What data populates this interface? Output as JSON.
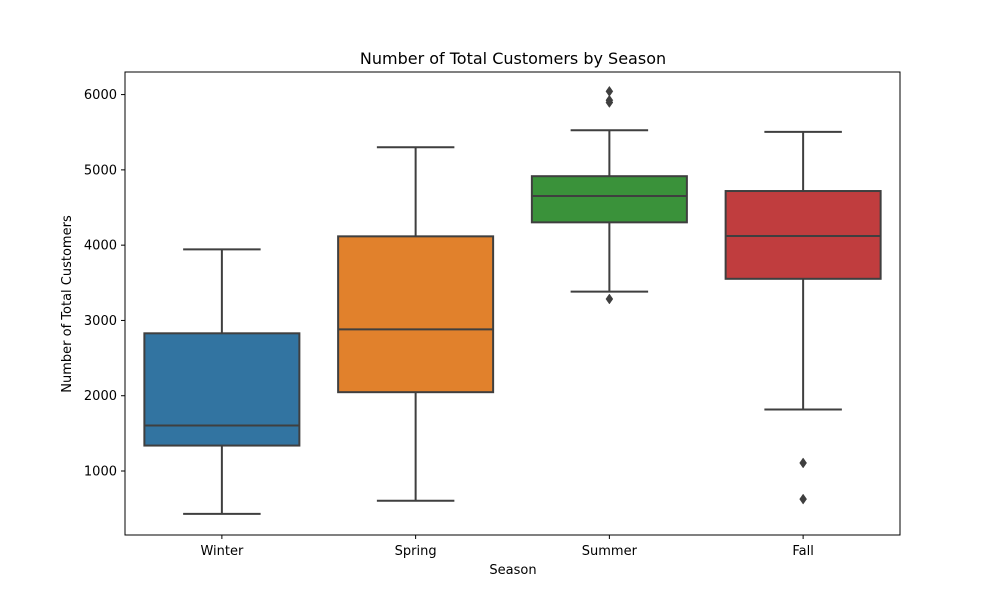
{
  "chart_data": {
    "type": "box",
    "title": "Number of Total Customers by Season",
    "xlabel": "Season",
    "ylabel": "Number of Total Customers",
    "ylim": [
      150,
      6300
    ],
    "yticks": [
      1000,
      2000,
      3000,
      4000,
      5000,
      6000
    ],
    "grid": false,
    "categories": [
      "Winter",
      "Spring",
      "Summer",
      "Fall"
    ],
    "colors": [
      "#3274a1",
      "#e1812c",
      "#3a923a",
      "#c03d3e"
    ],
    "edge_color": "#3f3f3f",
    "boxes": [
      {
        "category": "Winter",
        "whisker_low": 431,
        "q1": 1338,
        "median": 1605,
        "q3": 2829,
        "whisker_high": 3944,
        "outliers": []
      },
      {
        "category": "Spring",
        "whisker_low": 605,
        "q1": 2047,
        "median": 2882,
        "q3": 4117,
        "whisker_high": 5300,
        "outliers": []
      },
      {
        "category": "Summer",
        "whisker_low": 3382,
        "q1": 4303,
        "median": 4653,
        "q3": 4916,
        "whisker_high": 5527,
        "outliers": [
          3285,
          5895,
          5925,
          6043
        ]
      },
      {
        "category": "Fall",
        "whisker_low": 1817,
        "q1": 3553,
        "median": 4122,
        "q3": 4719,
        "whisker_high": 5505,
        "outliers": [
          627,
          1107
        ]
      }
    ]
  }
}
